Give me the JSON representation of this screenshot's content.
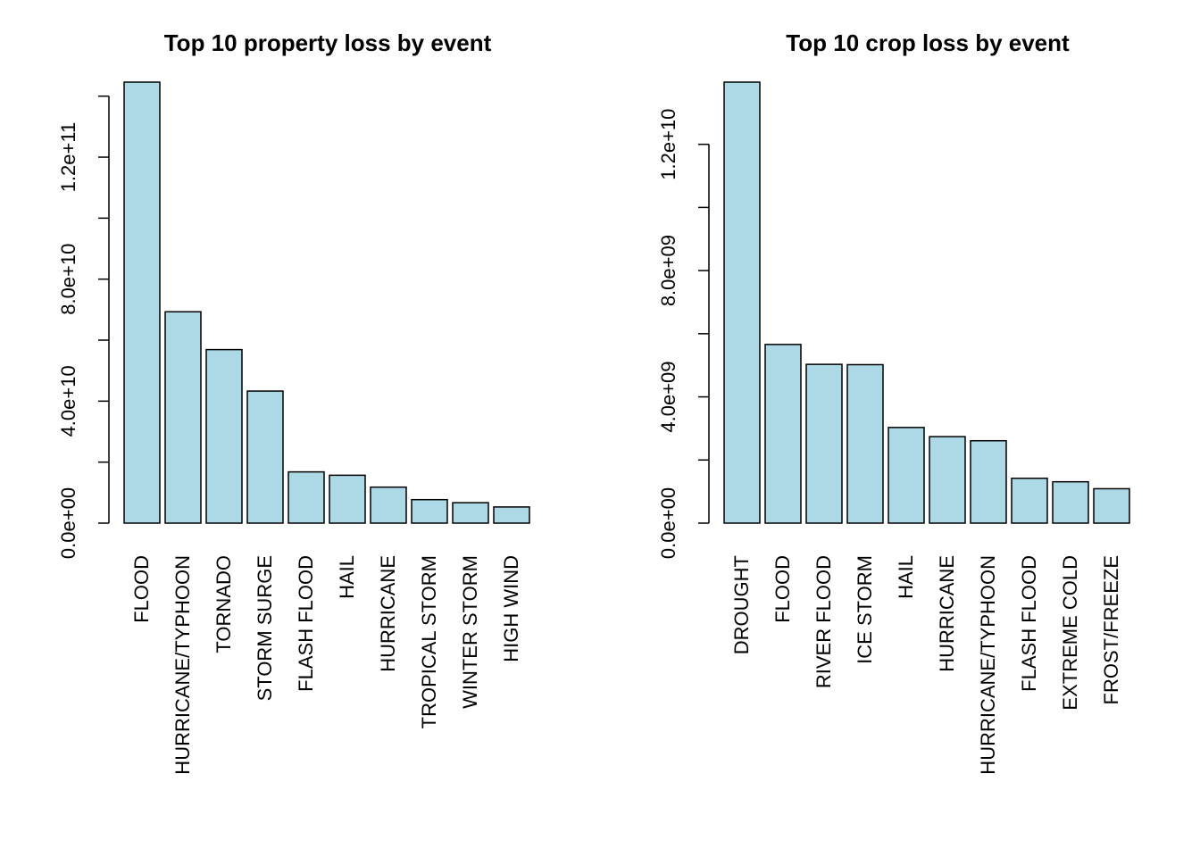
{
  "chart_data": [
    {
      "type": "bar",
      "title": "Top 10 property loss by event",
      "xlabel": "",
      "ylabel": "",
      "categories": [
        "FLOOD",
        "HURRICANE/TYPHOON",
        "TORNADO",
        "STORM SURGE",
        "FLASH FLOOD",
        "HAIL",
        "HURRICANE",
        "TROPICAL STORM",
        "WINTER STORM",
        "HIGH WIND"
      ],
      "values": [
        144600000000,
        69300000000,
        56900000000,
        43300000000,
        16800000000,
        15700000000,
        11800000000,
        7700000000,
        6700000000,
        5300000000
      ],
      "yticks": [
        0,
        20000000000,
        40000000000,
        60000000000,
        80000000000,
        100000000000,
        120000000000,
        140000000000
      ],
      "ytick_labels": [
        "0.0e+00",
        "",
        "4.0e+10",
        "",
        "8.0e+10",
        "",
        "1.2e+11",
        ""
      ],
      "ylim": [
        0,
        144600000000
      ],
      "grid": false,
      "legend": "none",
      "bar_color": "#add8e6"
    },
    {
      "type": "bar",
      "title": "Top 10 crop loss by event",
      "xlabel": "",
      "ylabel": "",
      "categories": [
        "DROUGHT",
        "FLOOD",
        "RIVER FLOOD",
        "ICE STORM",
        "HAIL",
        "HURRICANE",
        "HURRICANE/TYPHOON",
        "FLASH FLOOD",
        "EXTREME COLD",
        "FROST/FREEZE"
      ],
      "values": [
        13970000000,
        5660000000,
        5030000000,
        5020000000,
        3030000000,
        2740000000,
        2610000000,
        1420000000,
        1310000000,
        1090000000
      ],
      "yticks": [
        0,
        2000000000,
        4000000000,
        6000000000,
        8000000000,
        10000000000,
        12000000000
      ],
      "ytick_labels": [
        "0.0e+00",
        "",
        "4.0e+09",
        "",
        "8.0e+09",
        "",
        "1.2e+10"
      ],
      "ylim": [
        0,
        13970000000
      ],
      "grid": false,
      "legend": "none",
      "bar_color": "#add8e6"
    }
  ]
}
